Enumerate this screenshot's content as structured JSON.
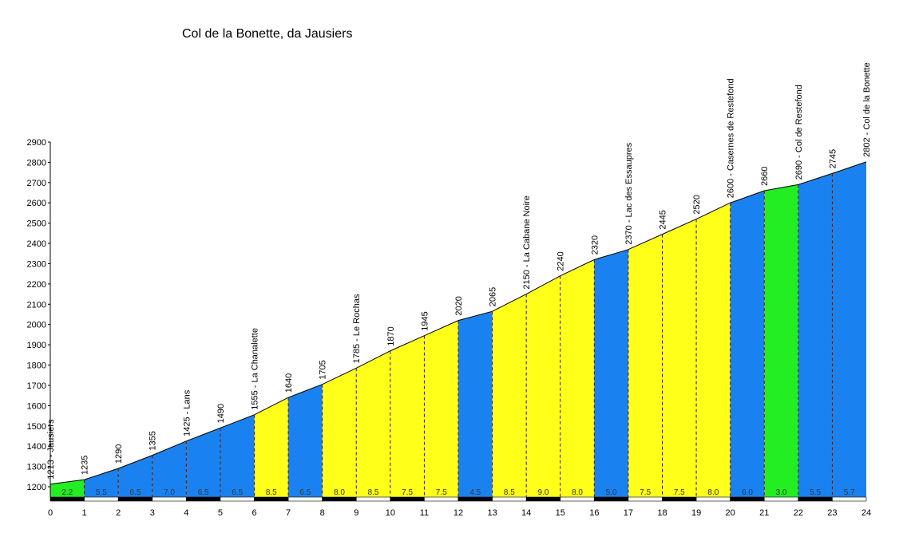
{
  "chart_data": {
    "type": "area",
    "title": "Col de la Bonette, da Jausiers",
    "xlabel": "",
    "ylabel": "",
    "xlim": [
      0,
      24
    ],
    "ylim": [
      1200,
      2900
    ],
    "y_ticks": [
      1200,
      1300,
      1400,
      1500,
      1600,
      1700,
      1800,
      1900,
      2000,
      2100,
      2200,
      2300,
      2400,
      2500,
      2600,
      2700,
      2800,
      2900
    ],
    "x_ticks": [
      0,
      1,
      2,
      3,
      4,
      5,
      6,
      7,
      8,
      9,
      10,
      11,
      12,
      13,
      14,
      15,
      16,
      17,
      18,
      19,
      20,
      21,
      22,
      23,
      24
    ],
    "km": [
      0,
      1,
      2,
      3,
      4,
      5,
      6,
      7,
      8,
      9,
      10,
      11,
      12,
      13,
      14,
      15,
      16,
      17,
      18,
      19,
      20,
      21,
      22,
      23,
      24
    ],
    "elevation": [
      1213,
      1235,
      1290,
      1355,
      1425,
      1490,
      1555,
      1640,
      1705,
      1785,
      1870,
      1945,
      2020,
      2065,
      2150,
      2240,
      2320,
      2370,
      2445,
      2520,
      2600,
      2660,
      2690,
      2745,
      2802
    ],
    "point_labels": [
      "1213 - Jausiers",
      "1235",
      "1290",
      "1355",
      "1425 - Lans",
      "1490",
      "1555 - La Chanalette",
      "1640",
      "1705",
      "1785 - Le Rochas",
      "1870",
      "1945",
      "2020",
      "2065",
      "2150 - La Cabane Noire",
      "2240",
      "2320",
      "2370 - Lac des Essaupres",
      "2445",
      "2520",
      "2600 - Casernes de Restefond",
      "2660",
      "2690 - Col de Restefond",
      "2745",
      "2802 - Col de la Bonette"
    ],
    "gradients": [
      "2.2",
      "5.5",
      "6.5",
      "7.0",
      "6.5",
      "6.5",
      "8.5",
      "6.5",
      "8.0",
      "8.5",
      "7.5",
      "7.5",
      "4.5",
      "8.5",
      "9.0",
      "8.0",
      "5.0",
      "7.5",
      "7.5",
      "8.0",
      "6.0",
      "3.0",
      "5.5",
      "5.7"
    ],
    "colors": {
      "easy": "#22ee22",
      "medium": "#1a82f0",
      "hard": "#ffff1a"
    }
  }
}
